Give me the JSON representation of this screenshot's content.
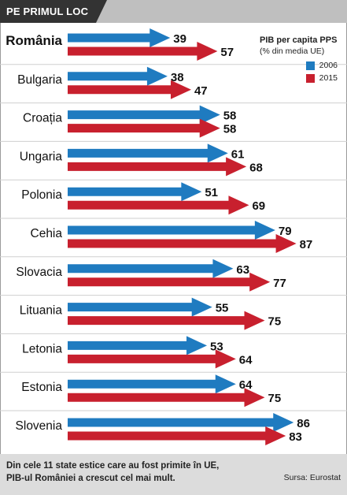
{
  "header": {
    "title": "PE PRIMUL LOC"
  },
  "legend": {
    "title": "PIB per capita PPS",
    "subtitle": "(% din media UE)",
    "items": [
      {
        "label": "2006",
        "color": "#1f7bc0"
      },
      {
        "label": "2015",
        "color": "#c8202e"
      }
    ]
  },
  "chart_data": {
    "type": "bar",
    "orientation": "horizontal",
    "categories": [
      "România",
      "Bulgaria",
      "Croația",
      "Ungaria",
      "Polonia",
      "Cehia",
      "Slovacia",
      "Lituania",
      "Letonia",
      "Estonia",
      "Slovenia"
    ],
    "series": [
      {
        "name": "2006",
        "values": [
          39,
          38,
          58,
          61,
          51,
          79,
          63,
          55,
          53,
          64,
          86
        ],
        "color": "#1f7bc0"
      },
      {
        "name": "2015",
        "values": [
          57,
          47,
          58,
          68,
          69,
          87,
          77,
          75,
          64,
          75,
          83
        ],
        "color": "#c8202e"
      }
    ],
    "highlight_category": "România",
    "grid": false
  },
  "footer": {
    "note_line1": "Din cele 11 state estice care au fost primite în UE,",
    "note_line2": "PIB-ul României a crescut cel mai mult.",
    "source": "Sursa: Eurostat"
  }
}
